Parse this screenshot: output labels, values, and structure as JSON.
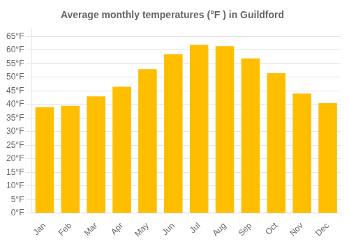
{
  "chart_data": {
    "type": "bar",
    "title": "Average monthly temperatures (°F ) in Guildford",
    "categories": [
      "Jan",
      "Feb",
      "Mar",
      "Apr",
      "May",
      "Jun",
      "Jul",
      "Aug",
      "Sep",
      "Oct",
      "Nov",
      "Dec"
    ],
    "values": [
      39,
      39.5,
      43,
      46.5,
      53,
      58.5,
      62,
      61.5,
      57,
      51.5,
      44,
      40.5
    ],
    "color": "#FFBE00",
    "ylim": [
      0,
      68
    ],
    "yticks": [
      {
        "value": 0,
        "label": "0°F"
      },
      {
        "value": 5,
        "label": "5°F"
      },
      {
        "value": 10,
        "label": "10°F"
      },
      {
        "value": 15,
        "label": "15°F"
      },
      {
        "value": 20,
        "label": "20°F"
      },
      {
        "value": 25,
        "label": "25°F"
      },
      {
        "value": 30,
        "label": "30°F"
      },
      {
        "value": 35,
        "label": "35°F"
      },
      {
        "value": 40,
        "label": "40°F"
      },
      {
        "value": 45,
        "label": "45°F"
      },
      {
        "value": 50,
        "label": "50°F"
      },
      {
        "value": 55,
        "label": "55°F"
      },
      {
        "value": 60,
        "label": "60°F"
      },
      {
        "value": 65,
        "label": "65°F"
      }
    ],
    "grid": true
  }
}
